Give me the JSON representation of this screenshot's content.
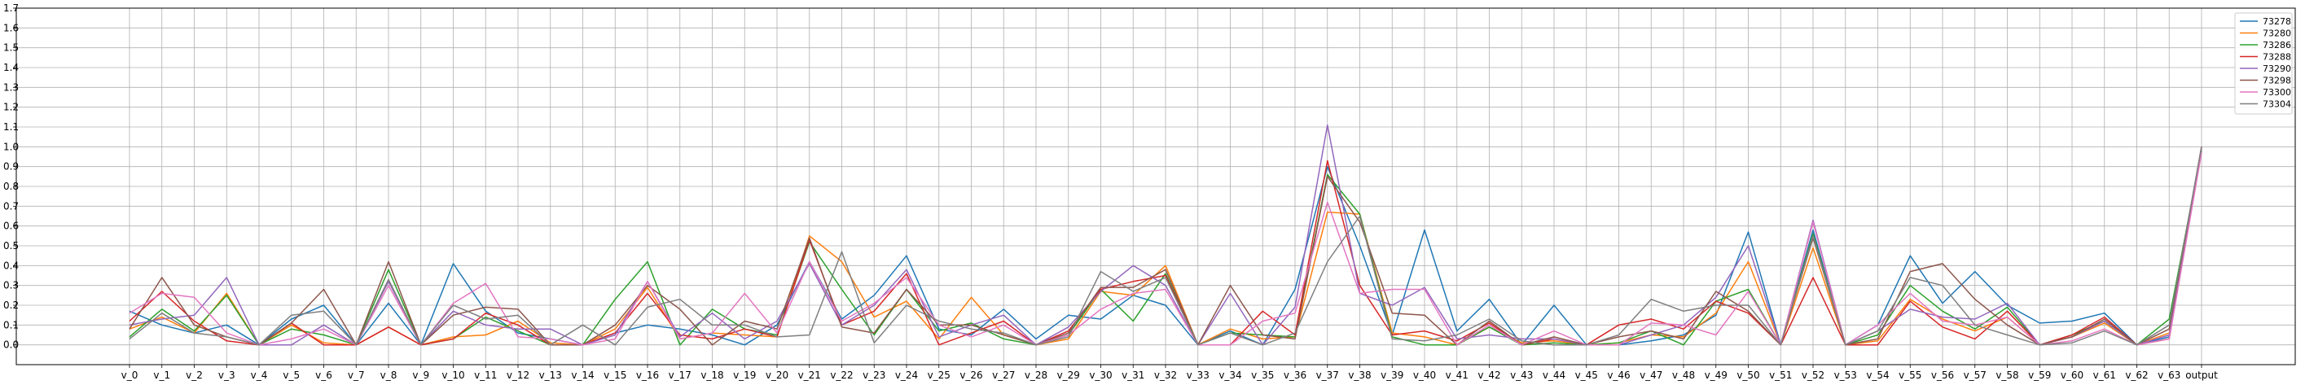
{
  "chart_data": {
    "type": "line",
    "title": "",
    "xlabel": "",
    "ylabel": "",
    "ylim": [
      -0.1,
      1.7
    ],
    "yticks": [
      0.0,
      0.1,
      0.2,
      0.3,
      0.4,
      0.5,
      0.6,
      0.7,
      0.8,
      0.9,
      1.0,
      1.1,
      1.2,
      1.3,
      1.4,
      1.5,
      1.6,
      1.7
    ],
    "ytick_labels": [
      "0.0",
      "0.1",
      "0.2",
      "0.3",
      "0.4",
      "0.5",
      "0.6",
      "0.7",
      "0.8",
      "0.9",
      "1.0",
      "1.1",
      "1.2",
      "1.3",
      "1.4",
      "1.5",
      "1.6",
      "1.7"
    ],
    "grid": true,
    "legend_position": "upper right",
    "categories": [
      "v_0",
      "v_1",
      "v_2",
      "v_3",
      "v_4",
      "v_5",
      "v_6",
      "v_7",
      "v_8",
      "v_9",
      "v_10",
      "v_11",
      "v_12",
      "v_13",
      "v_14",
      "v_15",
      "v_16",
      "v_17",
      "v_18",
      "v_19",
      "v_20",
      "v_21",
      "v_22",
      "v_23",
      "v_24",
      "v_25",
      "v_26",
      "v_27",
      "v_28",
      "v_29",
      "v_30",
      "v_31",
      "v_32",
      "v_33",
      "v_34",
      "v_35",
      "v_36",
      "v_37",
      "v_38",
      "v_39",
      "v_40",
      "v_41",
      "v_42",
      "v_43",
      "v_44",
      "v_45",
      "v_46",
      "v_47",
      "v_48",
      "v_49",
      "v_50",
      "v_51",
      "v_52",
      "v_53",
      "v_54",
      "v_55",
      "v_56",
      "v_57",
      "v_58",
      "v_59",
      "v_60",
      "v_61",
      "v_62",
      "v_63",
      "output"
    ],
    "series": [
      {
        "name": "73278",
        "color": "#1f77b4",
        "values": [
          0.17,
          0.1,
          0.06,
          0.1,
          0.0,
          0.13,
          0.2,
          0.0,
          0.21,
          0.0,
          0.41,
          0.17,
          0.06,
          0.03,
          0.0,
          0.06,
          0.1,
          0.08,
          0.05,
          0.0,
          0.1,
          0.42,
          0.13,
          0.25,
          0.45,
          0.08,
          0.05,
          0.18,
          0.03,
          0.15,
          0.13,
          0.25,
          0.2,
          0.0,
          0.07,
          0.0,
          0.28,
          0.9,
          0.5,
          0.05,
          0.58,
          0.07,
          0.23,
          0.0,
          0.2,
          0.0,
          0.0,
          0.02,
          0.05,
          0.15,
          0.57,
          0.0,
          0.58,
          0.0,
          0.1,
          0.45,
          0.21,
          0.37,
          0.2,
          0.11,
          0.12,
          0.16,
          0.0,
          0.04,
          1.0
        ]
      },
      {
        "name": "73280",
        "color": "#ff7f0e",
        "values": [
          0.08,
          0.14,
          0.06,
          0.26,
          0.0,
          0.1,
          0.01,
          0.0,
          0.09,
          0.0,
          0.04,
          0.05,
          0.12,
          0.01,
          0.0,
          0.08,
          0.29,
          0.03,
          0.06,
          0.05,
          0.04,
          0.55,
          0.42,
          0.14,
          0.22,
          0.03,
          0.24,
          0.05,
          0.0,
          0.03,
          0.27,
          0.25,
          0.4,
          0.0,
          0.08,
          0.03,
          0.04,
          0.67,
          0.66,
          0.06,
          0.04,
          0.0,
          0.09,
          0.01,
          0.02,
          0.0,
          0.01,
          0.05,
          0.04,
          0.16,
          0.42,
          0.0,
          0.49,
          0.0,
          0.02,
          0.23,
          0.13,
          0.07,
          0.14,
          0.0,
          0.04,
          0.11,
          0.0,
          0.06,
          1.0
        ]
      },
      {
        "name": "73286",
        "color": "#2ca02c",
        "values": [
          0.04,
          0.18,
          0.07,
          0.25,
          0.0,
          0.08,
          0.05,
          0.0,
          0.38,
          0.0,
          0.03,
          0.14,
          0.07,
          0.0,
          0.0,
          0.23,
          0.42,
          0.0,
          0.18,
          0.08,
          0.05,
          0.52,
          0.28,
          0.05,
          0.28,
          0.07,
          0.11,
          0.03,
          0.0,
          0.05,
          0.28,
          0.12,
          0.36,
          0.0,
          0.06,
          0.05,
          0.04,
          0.86,
          0.66,
          0.04,
          0.0,
          0.0,
          0.09,
          0.0,
          0.01,
          0.0,
          0.01,
          0.07,
          0.0,
          0.22,
          0.28,
          0.0,
          0.56,
          0.0,
          0.05,
          0.3,
          0.17,
          0.08,
          0.19,
          0.0,
          0.05,
          0.12,
          0.0,
          0.13,
          0.98
        ]
      },
      {
        "name": "73288",
        "color": "#d62728",
        "values": [
          0.12,
          0.27,
          0.12,
          0.02,
          0.0,
          0.11,
          0.0,
          0.0,
          0.09,
          0.0,
          0.03,
          0.16,
          0.1,
          0.0,
          0.0,
          0.06,
          0.26,
          0.05,
          0.03,
          0.08,
          0.04,
          0.53,
          0.1,
          0.17,
          0.36,
          0.0,
          0.06,
          0.12,
          0.0,
          0.07,
          0.28,
          0.32,
          0.35,
          0.0,
          0.0,
          0.17,
          0.05,
          0.93,
          0.3,
          0.05,
          0.07,
          0.02,
          0.11,
          0.0,
          0.03,
          0.0,
          0.1,
          0.13,
          0.08,
          0.22,
          0.16,
          0.0,
          0.34,
          0.0,
          0.0,
          0.22,
          0.09,
          0.03,
          0.17,
          0.0,
          0.05,
          0.14,
          0.0,
          0.03,
          1.0
        ]
      },
      {
        "name": "73290",
        "color": "#9467bd",
        "values": [
          0.1,
          0.13,
          0.15,
          0.34,
          0.0,
          0.0,
          0.1,
          0.0,
          0.32,
          0.0,
          0.17,
          0.1,
          0.08,
          0.08,
          0.0,
          0.05,
          0.32,
          0.04,
          0.16,
          0.03,
          0.12,
          0.41,
          0.1,
          0.2,
          0.38,
          0.04,
          0.1,
          0.15,
          0.0,
          0.09,
          0.27,
          0.4,
          0.3,
          0.0,
          0.26,
          0.0,
          0.19,
          1.11,
          0.26,
          0.2,
          0.29,
          0.03,
          0.05,
          0.03,
          0.03,
          0.0,
          0.0,
          0.05,
          0.1,
          0.24,
          0.5,
          0.0,
          0.63,
          0.0,
          0.07,
          0.18,
          0.14,
          0.13,
          0.21,
          0.0,
          0.04,
          0.12,
          0.0,
          0.05,
          0.99
        ]
      },
      {
        "name": "73298",
        "color": "#8c564b",
        "values": [
          0.08,
          0.34,
          0.1,
          0.04,
          0.0,
          0.11,
          0.28,
          0.0,
          0.42,
          0.0,
          0.15,
          0.19,
          0.18,
          0.0,
          0.0,
          0.1,
          0.3,
          0.18,
          0.0,
          0.12,
          0.08,
          0.54,
          0.09,
          0.06,
          0.28,
          0.1,
          0.1,
          0.05,
          0.0,
          0.06,
          0.29,
          0.29,
          0.38,
          0.0,
          0.3,
          0.05,
          0.03,
          0.85,
          0.62,
          0.16,
          0.15,
          0.0,
          0.12,
          0.0,
          0.04,
          0.0,
          0.04,
          0.07,
          0.03,
          0.27,
          0.17,
          0.0,
          0.54,
          0.0,
          0.03,
          0.37,
          0.41,
          0.23,
          0.1,
          0.0,
          0.04,
          0.13,
          0.0,
          0.08,
          1.0
        ]
      },
      {
        "name": "73300",
        "color": "#e377c2",
        "values": [
          0.16,
          0.26,
          0.24,
          0.06,
          0.0,
          0.03,
          0.08,
          0.0,
          0.3,
          0.0,
          0.21,
          0.31,
          0.04,
          0.03,
          0.0,
          0.03,
          0.32,
          0.03,
          0.06,
          0.26,
          0.06,
          0.42,
          0.12,
          0.21,
          0.34,
          0.1,
          0.04,
          0.1,
          0.0,
          0.05,
          0.18,
          0.26,
          0.28,
          0.0,
          0.0,
          0.12,
          0.16,
          0.72,
          0.26,
          0.28,
          0.28,
          0.0,
          0.1,
          0.0,
          0.07,
          0.0,
          0.0,
          0.11,
          0.1,
          0.05,
          0.27,
          0.0,
          0.62,
          0.0,
          0.1,
          0.26,
          0.12,
          0.1,
          0.14,
          0.0,
          0.02,
          0.08,
          0.0,
          0.03,
          0.97
        ]
      },
      {
        "name": "73304",
        "color": "#7f7f7f",
        "values": [
          0.03,
          0.16,
          0.06,
          0.04,
          0.0,
          0.15,
          0.17,
          0.0,
          0.33,
          0.0,
          0.2,
          0.13,
          0.15,
          0.0,
          0.1,
          0.0,
          0.19,
          0.23,
          0.1,
          0.1,
          0.04,
          0.05,
          0.47,
          0.01,
          0.2,
          0.12,
          0.08,
          0.06,
          0.0,
          0.04,
          0.37,
          0.27,
          0.34,
          0.0,
          0.06,
          0.0,
          0.06,
          0.42,
          0.65,
          0.03,
          0.02,
          0.05,
          0.13,
          0.02,
          0.0,
          0.0,
          0.05,
          0.23,
          0.17,
          0.2,
          0.2,
          0.0,
          0.55,
          0.0,
          0.07,
          0.34,
          0.3,
          0.1,
          0.05,
          0.0,
          0.01,
          0.07,
          0.0,
          0.1,
          1.0
        ]
      }
    ]
  }
}
